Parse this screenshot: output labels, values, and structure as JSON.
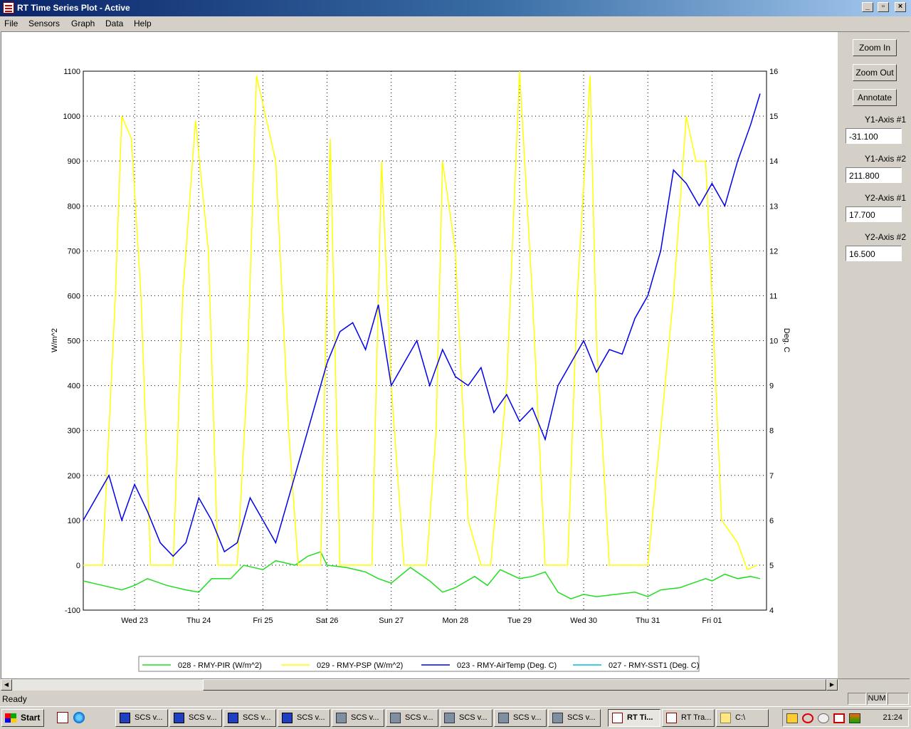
{
  "window": {
    "title": "RT Time Series Plot - Active"
  },
  "menu": [
    "File",
    "Sensors",
    "Graph",
    "Data",
    "Help"
  ],
  "panel": {
    "zoom_in": "Zoom In",
    "zoom_out": "Zoom Out",
    "annotate": "Annotate",
    "y1_axis_1_label": "Y1-Axis #1",
    "y1_axis_1_value": "-31.100",
    "y1_axis_2_label": "Y1-Axis #2",
    "y1_axis_2_value": "211.800",
    "y2_axis_1_label": "Y2-Axis #1",
    "y2_axis_1_value": "17.700",
    "y2_axis_2_label": "Y2-Axis #2",
    "y2_axis_2_value": "16.500"
  },
  "status": {
    "text": "Ready",
    "num": "NUM"
  },
  "taskbar": {
    "start": "Start",
    "tasks": [
      "SCS v...",
      "SCS v...",
      "SCS v...",
      "SCS v...",
      "SCS v...",
      "SCS v...",
      "SCS v...",
      "SCS v...",
      "SCS v...",
      "RT Ti...",
      "RT Tra...",
      "C:\\"
    ],
    "clock": "21:24"
  },
  "colors": {
    "pir": "#22dd22",
    "psp": "#ffff00",
    "airtemp": "#0000ee",
    "sst1": "#00bbdd"
  },
  "chart_data": {
    "type": "line",
    "xlabel": "",
    "ylabel": "W/m^2",
    "y2label": "Deg. C",
    "ylim": [
      -100,
      1100
    ],
    "y2lim": [
      4,
      16
    ],
    "yticks": [
      "1100",
      "1000",
      "900",
      "800",
      "700",
      "600",
      "500",
      "400",
      "300",
      "200",
      "100",
      "0",
      "-100"
    ],
    "y2ticks": [
      "16",
      "15",
      "14",
      "13",
      "12",
      "11",
      "10",
      "9",
      "8",
      "7",
      "6",
      "5",
      "4"
    ],
    "xlim": [
      0,
      10.65
    ],
    "xticks": [
      {
        "x": 0.8,
        "label": "Wed 23"
      },
      {
        "x": 1.8,
        "label": "Thu 24"
      },
      {
        "x": 2.8,
        "label": "Fri 25"
      },
      {
        "x": 3.8,
        "label": "Sat 26"
      },
      {
        "x": 4.8,
        "label": "Sun 27"
      },
      {
        "x": 5.8,
        "label": "Mon 28"
      },
      {
        "x": 6.8,
        "label": "Tue 29"
      },
      {
        "x": 7.8,
        "label": "Wed 30"
      },
      {
        "x": 8.8,
        "label": "Thu 31"
      },
      {
        "x": 9.8,
        "label": "Fri 01"
      }
    ],
    "grid": true,
    "legend_position": "bottom",
    "series": [
      {
        "name": "028 - RMY-PIR (W/m^2)",
        "axis": "y1",
        "x": [
          0,
          0.3,
          0.6,
          0.8,
          1.0,
          1.3,
          1.6,
          1.8,
          2.0,
          2.3,
          2.5,
          2.8,
          3.0,
          3.3,
          3.5,
          3.7,
          3.8,
          4.1,
          4.4,
          4.6,
          4.8,
          5.1,
          5.4,
          5.6,
          5.8,
          6.1,
          6.3,
          6.5,
          6.8,
          7.0,
          7.2,
          7.4,
          7.6,
          7.8,
          8.0,
          8.3,
          8.6,
          8.8,
          9.0,
          9.3,
          9.5,
          9.7,
          9.8,
          10.0,
          10.2,
          10.4,
          10.55
        ],
        "values": [
          -35,
          -45,
          -55,
          -45,
          -30,
          -45,
          -55,
          -60,
          -30,
          -30,
          0,
          -10,
          10,
          0,
          20,
          30,
          0,
          -5,
          -15,
          -30,
          -40,
          -5,
          -35,
          -60,
          -50,
          -25,
          -45,
          -10,
          -30,
          -25,
          -15,
          -60,
          -75,
          -65,
          -70,
          -65,
          -60,
          -70,
          -55,
          -50,
          -40,
          -30,
          -35,
          -20,
          -30,
          -25,
          -30
        ]
      },
      {
        "name": "029 - RMY-PSP (W/m^2)",
        "axis": "y1",
        "x": [
          0,
          0.15,
          0.3,
          0.5,
          0.6,
          0.75,
          0.9,
          1.05,
          1.2,
          1.4,
          1.55,
          1.75,
          1.95,
          2.1,
          2.2,
          2.4,
          2.55,
          2.7,
          3.0,
          3.2,
          3.35,
          3.5,
          3.7,
          3.85,
          4.0,
          4.2,
          4.35,
          4.5,
          4.65,
          4.8,
          5.0,
          5.2,
          5.35,
          5.5,
          5.6,
          5.8,
          6.0,
          6.2,
          6.35,
          6.6,
          6.8,
          7.0,
          7.2,
          7.4,
          7.55,
          7.7,
          7.9,
          8.0,
          8.2,
          8.4,
          8.55,
          8.8,
          9.0,
          9.2,
          9.4,
          9.55,
          9.7,
          9.8,
          9.95,
          10.2,
          10.35,
          10.5
        ],
        "values": [
          0,
          0,
          0,
          600,
          1000,
          950,
          600,
          0,
          0,
          0,
          600,
          990,
          700,
          0,
          0,
          0,
          400,
          1090,
          900,
          300,
          0,
          0,
          0,
          950,
          0,
          0,
          0,
          0,
          900,
          400,
          0,
          0,
          0,
          300,
          900,
          700,
          100,
          0,
          0,
          400,
          1100,
          600,
          0,
          0,
          0,
          600,
          1090,
          500,
          0,
          0,
          0,
          0,
          300,
          600,
          1000,
          900,
          900,
          600,
          100,
          50,
          -10,
          0
        ]
      },
      {
        "name": "023 - RMY-AirTemp (Deg. C)",
        "axis": "y2",
        "x": [
          0,
          0.2,
          0.4,
          0.6,
          0.8,
          1.0,
          1.2,
          1.4,
          1.6,
          1.8,
          2.0,
          2.2,
          2.4,
          2.6,
          2.8,
          3.0,
          3.2,
          3.4,
          3.6,
          3.8,
          4.0,
          4.2,
          4.4,
          4.6,
          4.8,
          5.0,
          5.2,
          5.4,
          5.6,
          5.8,
          6.0,
          6.2,
          6.4,
          6.6,
          6.8,
          7.0,
          7.2,
          7.4,
          7.6,
          7.8,
          8.0,
          8.2,
          8.4,
          8.6,
          8.8,
          9.0,
          9.2,
          9.4,
          9.6,
          9.8,
          10.0,
          10.2,
          10.4,
          10.55
        ],
        "values": [
          6,
          6.5,
          7,
          6,
          6.8,
          6.2,
          5.5,
          5.2,
          5.5,
          6.5,
          6,
          5.3,
          5.5,
          6.5,
          6,
          5.5,
          6.5,
          7.5,
          8.5,
          9.5,
          10.2,
          10.4,
          9.8,
          10.8,
          9,
          9.5,
          10,
          9,
          9.8,
          9.2,
          9,
          9.4,
          8.4,
          8.8,
          8.2,
          8.5,
          7.8,
          9,
          9.5,
          10,
          9.3,
          9.8,
          9.7,
          10.5,
          11,
          12,
          13.8,
          13.5,
          13,
          13.5,
          13,
          14,
          14.8,
          15.5
        ]
      },
      {
        "name": "027 - RMY-SST1 (Deg. C)",
        "axis": "y2",
        "x": [],
        "values": []
      }
    ]
  }
}
